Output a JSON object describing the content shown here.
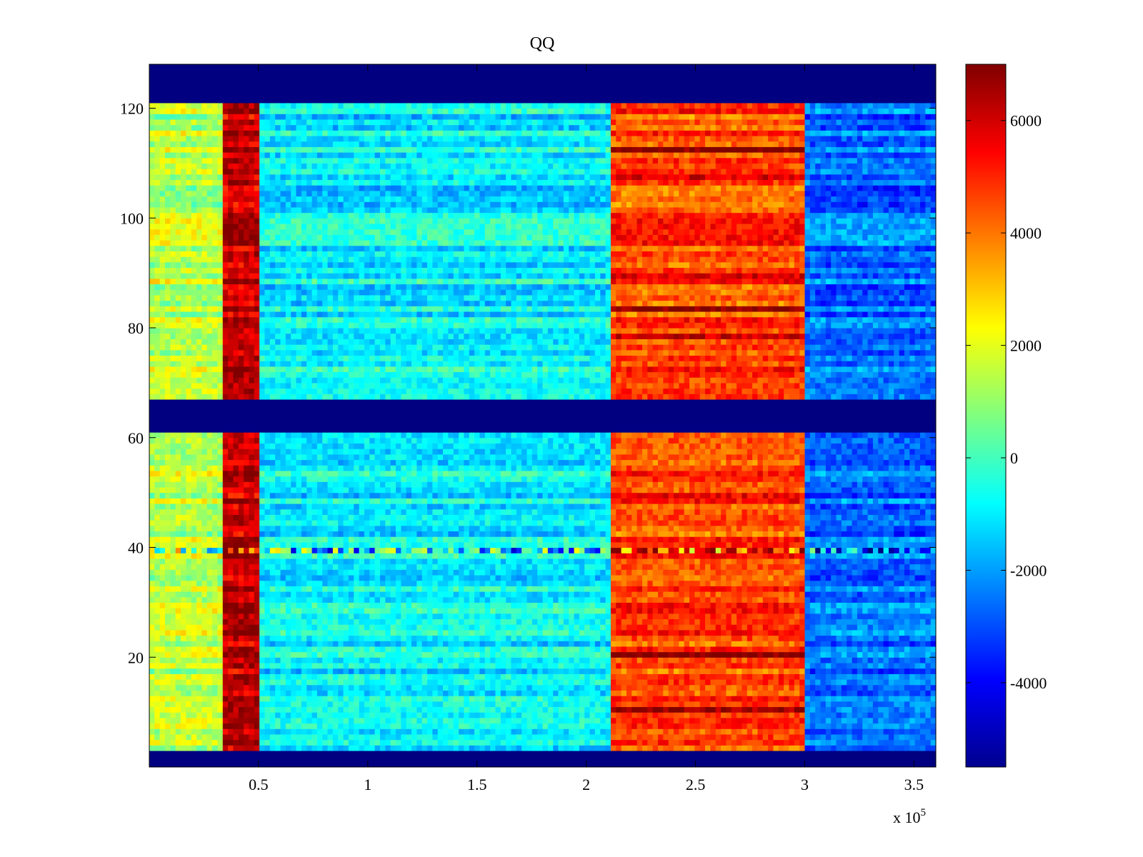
{
  "chart_data": {
    "type": "heatmap",
    "title": "QQ",
    "xlabel": "",
    "ylabel": "",
    "x_multiplier_label": "x 10",
    "x_multiplier_exponent": "5",
    "xlim": [
      0,
      3.6
    ],
    "ylim": [
      0,
      128
    ],
    "x_ticks": [
      0.5,
      1,
      1.5,
      2,
      2.5,
      3,
      3.5
    ],
    "x_tick_labels": [
      "0.5",
      "1",
      "1.5",
      "2",
      "2.5",
      "3",
      "3.5"
    ],
    "y_ticks": [
      20,
      40,
      60,
      80,
      100,
      120
    ],
    "y_tick_labels": [
      "20",
      "40",
      "60",
      "80",
      "100",
      "120"
    ],
    "colorbar": {
      "colormap": "jet",
      "range": [
        -5500,
        7000
      ],
      "ticks": [
        -4000,
        -2000,
        0,
        2000,
        4000,
        6000
      ],
      "tick_labels": [
        "-4000",
        "-2000",
        "0",
        "2000",
        "4000",
        "6000"
      ]
    },
    "masked_row_bands": [
      [
        0,
        3
      ],
      [
        61,
        67
      ],
      [
        121,
        128
      ]
    ],
    "masked_value": -5500,
    "column_regions": [
      {
        "x_from": 0.0,
        "x_to": 0.33,
        "value": 1500
      },
      {
        "x_from": 0.33,
        "x_to": 0.5,
        "value": 6200
      },
      {
        "x_from": 0.5,
        "x_to": 2.1,
        "value": -900
      },
      {
        "x_from": 2.1,
        "x_to": 3.0,
        "value": 4600
      },
      {
        "x_from": 3.0,
        "x_to": 3.6,
        "value": -2600
      }
    ],
    "hot_rows": [
      10,
      20,
      49,
      78,
      83,
      89,
      107,
      112
    ],
    "anomalous_row": 39
  }
}
